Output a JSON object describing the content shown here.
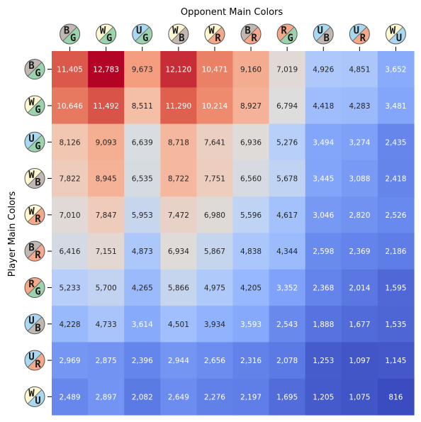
{
  "chart_data": {
    "type": "heatmap",
    "title": "",
    "xlabel": "Opponent Main Colors",
    "ylabel": "Player Main Colors",
    "x_categories": [
      "BG",
      "WG",
      "UG",
      "WB",
      "WR",
      "BR",
      "RG",
      "UB",
      "UR",
      "WU"
    ],
    "y_categories": [
      "BG",
      "WG",
      "UG",
      "WB",
      "WR",
      "BR",
      "RG",
      "UB",
      "UR",
      "WU"
    ],
    "values": [
      [
        11405,
        12783,
        9673,
        12120,
        10471,
        9160,
        7019,
        4926,
        4851,
        3652
      ],
      [
        10646,
        11492,
        8511,
        11290,
        10214,
        8927,
        6794,
        4418,
        4283,
        3481
      ],
      [
        8126,
        9093,
        6639,
        8718,
        7641,
        6936,
        5276,
        3494,
        3274,
        2435
      ],
      [
        7822,
        8945,
        6535,
        8722,
        7751,
        6560,
        5678,
        3445,
        3088,
        2418
      ],
      [
        7010,
        7847,
        5953,
        7472,
        6980,
        5596,
        4617,
        3046,
        2820,
        2526
      ],
      [
        6416,
        7151,
        4873,
        6934,
        5867,
        4838,
        4344,
        2598,
        2369,
        2186
      ],
      [
        5233,
        5700,
        4265,
        5866,
        4975,
        4205,
        3352,
        2368,
        2014,
        1595
      ],
      [
        4228,
        4733,
        3614,
        4501,
        3934,
        3593,
        2543,
        1888,
        1677,
        1535
      ],
      [
        2969,
        2875,
        2396,
        2944,
        2656,
        2316,
        2078,
        1253,
        1097,
        1145
      ],
      [
        2489,
        2897,
        2082,
        2649,
        2276,
        2197,
        1695,
        1205,
        1075,
        816
      ]
    ],
    "colormap": "coolwarm",
    "value_range": [
      816,
      12783
    ],
    "grid": false,
    "legend": "none",
    "mana_colors": {
      "W": "#fff8d2",
      "U": "#a9d8f0",
      "B": "#c2b8b3",
      "R": "#f4a98c",
      "G": "#9bd3ae"
    }
  }
}
